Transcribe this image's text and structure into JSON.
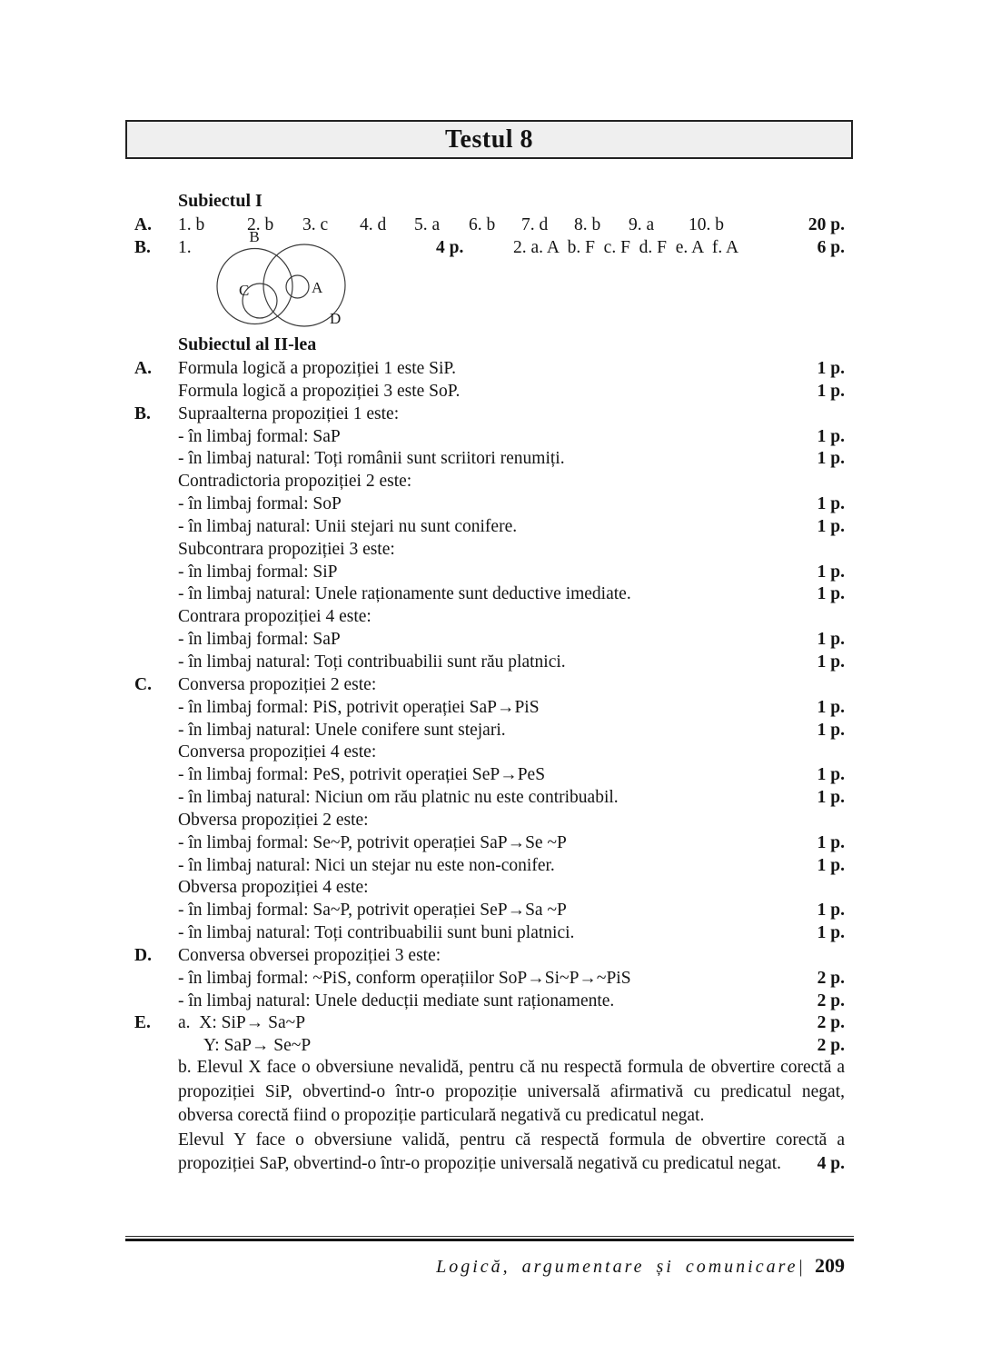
{
  "title": "Testul 8",
  "subject1": {
    "heading": "Subiectul I",
    "row_a": {
      "label": "A.",
      "answers": [
        "1. b",
        "2. b",
        "3. c",
        "4. d",
        "5. a",
        "6. b",
        "7. d",
        "8. b",
        "9. a",
        "10. b"
      ],
      "points": "20 p."
    },
    "row_b": {
      "label": "B.",
      "item1": "1.",
      "points1": "4 p.",
      "item2": "2. a. A  b. F  c. F  d. F  e. A  f. A",
      "points2": "6 p."
    },
    "venn": {
      "labels": {
        "a": "A",
        "b": "B",
        "c": "C",
        "d": "D"
      }
    }
  },
  "subject2": {
    "heading": "Subiectul al II-lea",
    "rows": [
      {
        "label": "A.",
        "text": "Formula logică a propoziției 1 este SiP.",
        "points": "1 p."
      },
      {
        "label": "",
        "text": "Formula logică a propoziției 3 este SoP.",
        "points": "1 p."
      },
      {
        "label": "B.",
        "text": "Supraalterna propoziției 1 este:",
        "points": ""
      },
      {
        "label": "",
        "text": "- în limbaj formal: SaP",
        "points": "1 p."
      },
      {
        "label": "",
        "text": "- în limbaj natural: Toți românii sunt scriitori renumiți.",
        "points": "1 p."
      },
      {
        "label": "",
        "text": "Contradictoria propoziției 2 este:",
        "points": ""
      },
      {
        "label": "",
        "text": "- în limbaj formal: SoP",
        "points": "1 p."
      },
      {
        "label": "",
        "text": "- în limbaj natural: Unii stejari nu sunt conifere.",
        "points": "1 p."
      },
      {
        "label": "",
        "text": "Subcontrara propoziției 3 este:",
        "points": ""
      },
      {
        "label": "",
        "text": "- în limbaj formal: SiP",
        "points": "1 p."
      },
      {
        "label": "",
        "text": "- în limbaj natural: Unele raționamente sunt deductive imediate.",
        "points": "1 p."
      },
      {
        "label": "",
        "text": "Contrara propoziției 4 este:",
        "points": ""
      },
      {
        "label": "",
        "text": "- în limbaj formal: SaP",
        "points": "1 p."
      },
      {
        "label": "",
        "text": "- în limbaj natural: Toți contribuabilii sunt rău platnici.",
        "points": "1 p."
      },
      {
        "label": "C.",
        "text": "Conversa propoziției 2 este:",
        "points": ""
      },
      {
        "label": "",
        "text": "- în limbaj formal: PiS, potrivit operației SaP→PiS",
        "points": "1 p."
      },
      {
        "label": "",
        "text": "- în limbaj natural: Unele conifere sunt stejari.",
        "points": "1 p."
      },
      {
        "label": "",
        "text": "Conversa propoziției 4 este:",
        "points": ""
      },
      {
        "label": "",
        "text": "- în limbaj formal: PeS, potrivit operației SeP→PeS",
        "points": "1 p."
      },
      {
        "label": "",
        "text": "- în limbaj natural: Niciun om rău platnic nu este contribuabil.",
        "points": "1 p."
      },
      {
        "label": "",
        "text": "Obversa propoziției 2 este:",
        "points": ""
      },
      {
        "label": "",
        "text": "- în limbaj formal: Se~P, potrivit operației SaP→Se ~P",
        "points": "1 p."
      },
      {
        "label": "",
        "text": "- în limbaj natural: Nici un stejar nu este non-conifer.",
        "points": "1 p."
      },
      {
        "label": "",
        "text": "Obversa propoziției 4 este:",
        "points": ""
      },
      {
        "label": "",
        "text": "- în limbaj formal: Sa~P, potrivit operației SeP→Sa ~P",
        "points": "1 p."
      },
      {
        "label": "",
        "text": "- în limbaj natural: Toți contribuabilii sunt buni platnici.",
        "points": "1 p."
      },
      {
        "label": "D.",
        "text": "Conversa obversei propoziției 3 este:",
        "points": ""
      },
      {
        "label": "",
        "text": "- în limbaj formal: ~PiS, conform operațiilor SoP→Si~P→~PiS",
        "points": "2 p."
      },
      {
        "label": "",
        "text": "- în limbaj natural: Unele deducții mediate sunt raționamente.",
        "points": "2 p."
      },
      {
        "label": "E.",
        "text": "a.  X: SiP→ Sa~P",
        "points": "2 p."
      },
      {
        "label": "",
        "text": "Y: SaP→ Se~P",
        "points": "2 p.",
        "cls": "indent-y"
      }
    ],
    "paragraphs": [
      {
        "text": "b. Elevul X face o obversiune nevalidă, pentru că nu respectă formula de obvertire corectă a propoziției SiP, obvertind-o într-o propoziție universală afirmativă cu predicatul negat, obversa corectă fiind o propoziție particulară negativă cu predicatul negat.",
        "points": ""
      },
      {
        "text": "Elevul Y face o obversiune validă, pentru că respectă formula de obvertire corectă a propoziției SaP, obvertind-o într-o propoziție universală negativă cu predicatul negat.",
        "points": "4 p."
      }
    ]
  },
  "footer": {
    "text": "Logică, argumentare și comunicare|",
    "page_number": "209"
  }
}
